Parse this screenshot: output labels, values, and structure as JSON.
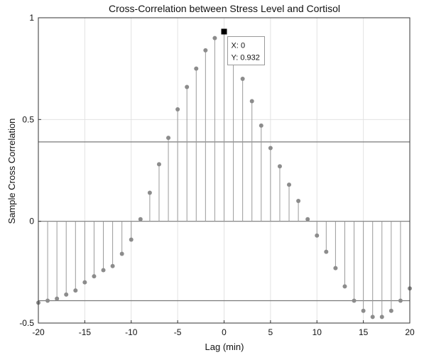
{
  "chart_data": {
    "type": "stem",
    "title": "Cross-Correlation between Stress Level and Cortisol",
    "xlabel": "Lag (min)",
    "ylabel": "Sample Cross Correlation",
    "xlim": [
      -20,
      20
    ],
    "ylim": [
      -0.5,
      1
    ],
    "xticks": [
      "-20",
      "-15",
      "-10",
      "-5",
      "0",
      "5",
      "10",
      "15",
      "20"
    ],
    "yticks": [
      "-0.5",
      "0",
      "0.5",
      "1"
    ],
    "grid": true,
    "confidence_bounds": [
      0.39,
      -0.39
    ],
    "x": [
      -20,
      -19,
      -18,
      -17,
      -16,
      -15,
      -14,
      -13,
      -12,
      -11,
      -10,
      -9,
      -8,
      -7,
      -6,
      -5,
      -4,
      -3,
      -2,
      -1,
      0,
      1,
      2,
      3,
      4,
      5,
      6,
      7,
      8,
      9,
      10,
      11,
      12,
      13,
      14,
      15,
      16,
      17,
      18,
      19,
      20
    ],
    "y": [
      -0.4,
      -0.39,
      -0.38,
      -0.36,
      -0.34,
      -0.3,
      -0.27,
      -0.24,
      -0.22,
      -0.16,
      -0.09,
      0.01,
      0.14,
      0.28,
      0.41,
      0.55,
      0.66,
      0.75,
      0.84,
      0.9,
      0.932,
      0.79,
      0.7,
      0.59,
      0.47,
      0.36,
      0.27,
      0.18,
      0.1,
      0.01,
      -0.07,
      -0.15,
      -0.23,
      -0.32,
      -0.39,
      -0.44,
      -0.47,
      -0.47,
      -0.44,
      -0.39,
      -0.33
    ],
    "datatip": {
      "x_text": "X: 0",
      "y_text": "Y: 0.932",
      "x": 0,
      "y": 0.932
    },
    "colors": {
      "stem": "#9a9a9a",
      "marker": "#8c8c8c",
      "bounds": "#7a7a7a",
      "grid": "#e2e2e2",
      "axis": "#333333"
    }
  }
}
